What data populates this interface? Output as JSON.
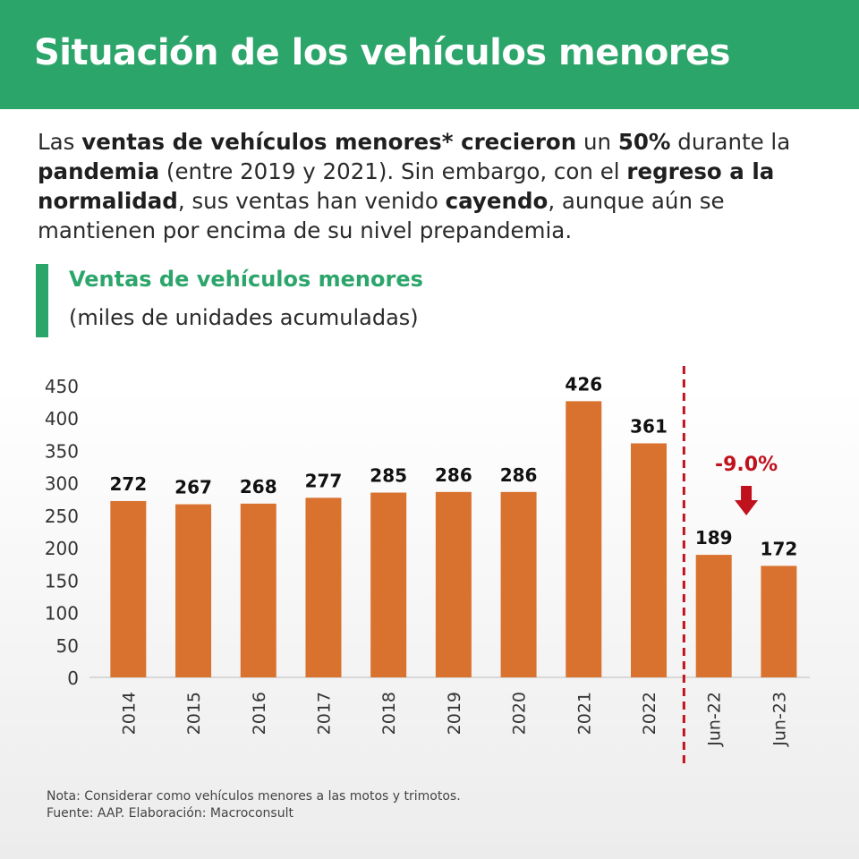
{
  "header": {
    "title": "Situación de los vehículos menores"
  },
  "intro": {
    "parts": [
      {
        "text": "Las ",
        "bold": false
      },
      {
        "text": "ventas de vehículos menores* crecieron",
        "bold": true
      },
      {
        "text": " un ",
        "bold": false
      },
      {
        "text": "50%",
        "bold": true
      },
      {
        "text": " durante la ",
        "bold": false
      },
      {
        "text": "pandemia",
        "bold": true
      },
      {
        "text": " (entre 2019 y 2021). Sin embargo, con el ",
        "bold": false
      },
      {
        "text": "regreso a la normalidad",
        "bold": true
      },
      {
        "text": ", sus ventas han venido ",
        "bold": false
      },
      {
        "text": "cayendo",
        "bold": true
      },
      {
        "text": ", aunque aún se mantienen por encima de su nivel prepandemia.",
        "bold": false
      }
    ]
  },
  "chart_data": {
    "type": "bar",
    "title": "Ventas de vehículos menores",
    "subtitle": "(miles de unidades acumuladas)",
    "categories": [
      "2014",
      "2015",
      "2016",
      "2017",
      "2018",
      "2019",
      "2020",
      "2021",
      "2022",
      "Jun-22",
      "Jun-23"
    ],
    "values": [
      272,
      267,
      268,
      277,
      285,
      286,
      286,
      426,
      361,
      189,
      172
    ],
    "data_labels": [
      "272",
      "267",
      "268",
      "277",
      "285",
      "286",
      "286",
      "426",
      "361",
      "189",
      "172"
    ],
    "ylim": [
      0,
      450
    ],
    "yticks": [
      0,
      50,
      100,
      150,
      200,
      250,
      300,
      350,
      400,
      450
    ],
    "bar_color": "#d9722f",
    "divider_after_category": "2022",
    "divider_color": "#c0121d",
    "annotation": {
      "text": "-9.0%",
      "color": "#c0121d",
      "icon": "arrow-down-icon"
    },
    "xlabel": "",
    "ylabel": "",
    "grid": false,
    "legend": "none"
  },
  "footnote": {
    "note": "Nota: Considerar como vehículos menores a las motos y trimotos.",
    "source": "Fuente: AAP. Elaboración: Macroconsult"
  }
}
